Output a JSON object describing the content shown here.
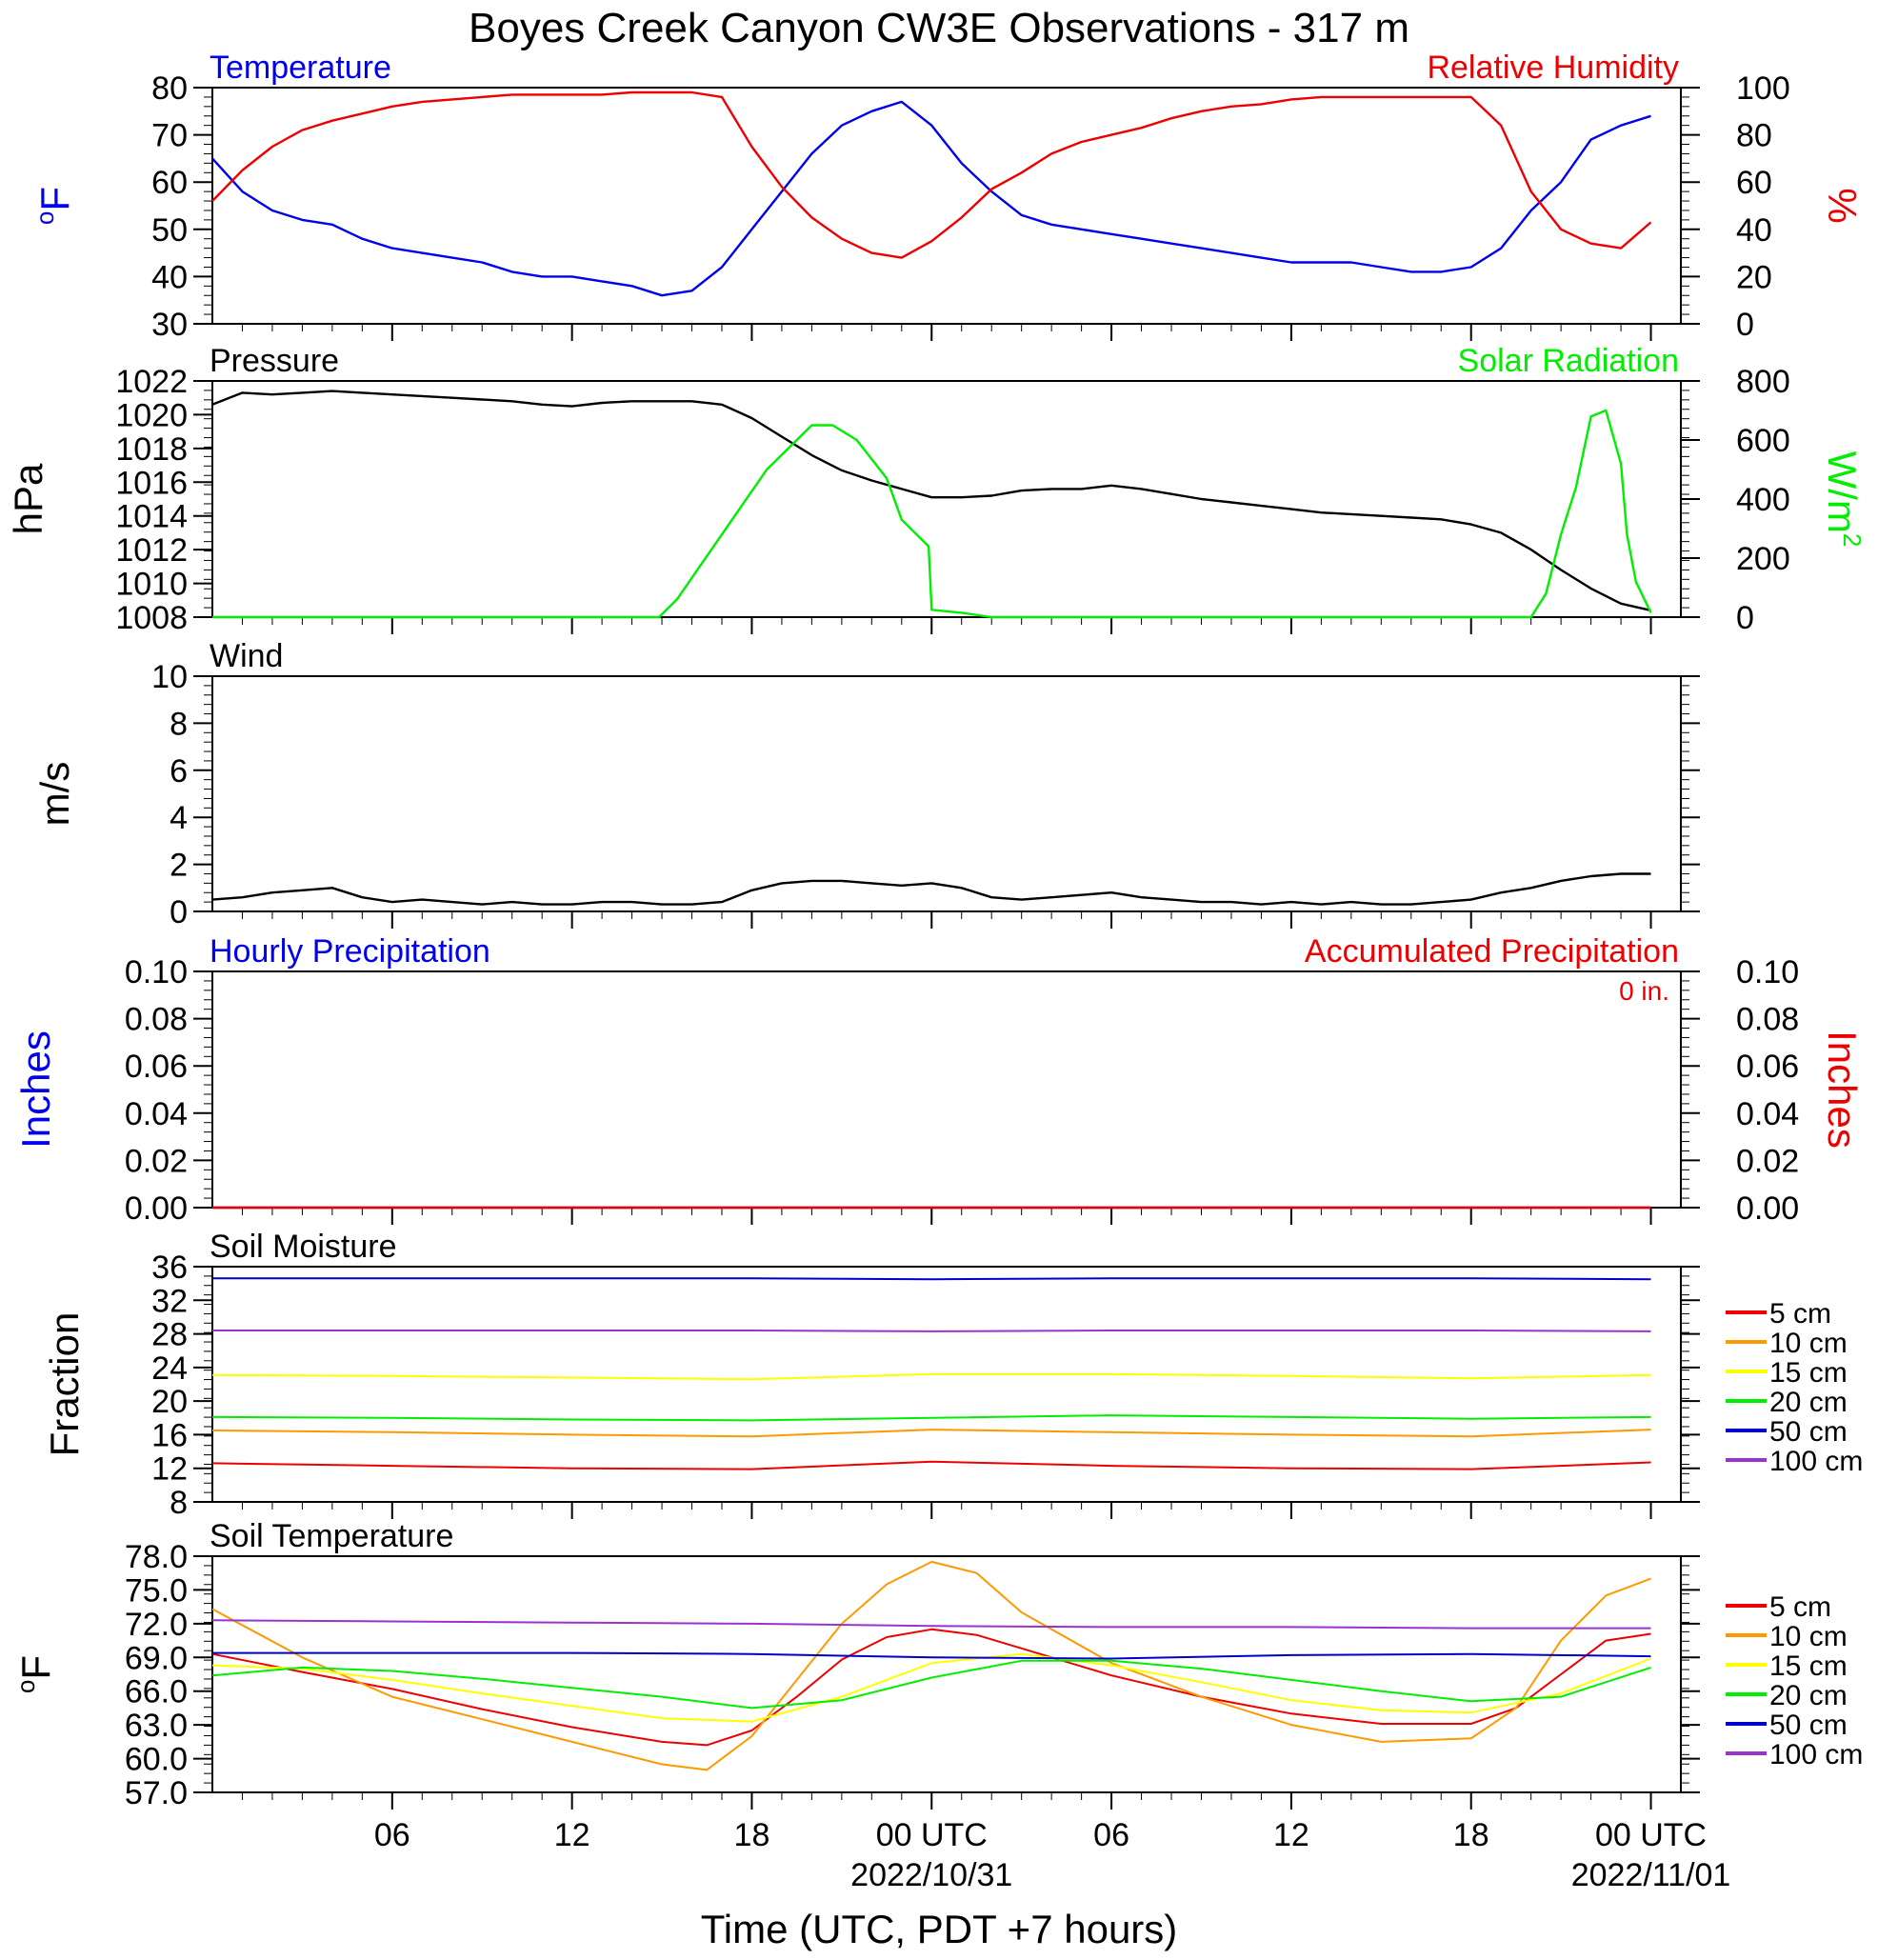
{
  "title": "Boyes Creek Canyon CW3E Observations - 317 m",
  "xlabel": "Time (UTC, PDT +7 hours)",
  "time_axis": {
    "ticks": [
      {
        "hour": 6,
        "label": "06",
        "date": ""
      },
      {
        "hour": 12,
        "label": "12",
        "date": ""
      },
      {
        "hour": 18,
        "label": "18",
        "date": ""
      },
      {
        "hour": 24,
        "label": "00 UTC",
        "date": "2022/10/31"
      },
      {
        "hour": 30,
        "label": "06",
        "date": ""
      },
      {
        "hour": 36,
        "label": "12",
        "date": ""
      },
      {
        "hour": 42,
        "label": "18",
        "date": ""
      },
      {
        "hour": 48,
        "label": "00 UTC",
        "date": "2022/11/01"
      }
    ]
  },
  "colors": {
    "blue": "#0000ee",
    "red": "#ee0000",
    "green": "#00ee00",
    "black": "#000000",
    "depths": [
      "#ee0000",
      "#ff9900",
      "#ffff00",
      "#00ee00",
      "#0000cc",
      "#9933cc"
    ]
  },
  "depth_labels": [
    "5 cm",
    "10 cm",
    "15 cm",
    "20 cm",
    "50 cm",
    "100 cm"
  ],
  "chart_data": [
    {
      "type": "line",
      "panel": "temperature_humidity",
      "left_title": "Temperature",
      "right_title": "Relative Humidity",
      "ylabel_left": "oF",
      "ylabel_right": "%",
      "ylim_left": [
        30,
        80
      ],
      "ylim_right": [
        0,
        100
      ],
      "yticks_left": [
        "30",
        "40",
        "50",
        "60",
        "70",
        "80"
      ],
      "yticks_right": [
        "0",
        "20",
        "40",
        "60",
        "80",
        "100"
      ],
      "series": [
        {
          "axis": "left",
          "color": "#0000ee",
          "x": [
            0,
            1,
            2,
            3,
            4,
            5,
            6,
            7,
            8,
            9,
            10,
            11,
            12,
            13,
            14,
            15,
            16,
            17,
            18,
            19,
            20,
            21,
            22,
            23,
            24,
            25,
            26,
            27,
            28,
            29,
            30,
            31,
            32,
            33,
            34,
            35,
            36,
            37,
            38,
            39,
            40,
            41,
            42,
            43,
            44,
            45,
            46,
            47,
            48
          ],
          "y": [
            65,
            58,
            54,
            52,
            51,
            48,
            46,
            45,
            44,
            43,
            41,
            40,
            40,
            39,
            38,
            36,
            37,
            42,
            50,
            58,
            66,
            72,
            75,
            77,
            72,
            64,
            58,
            53,
            51,
            50,
            49,
            48,
            47,
            46,
            45,
            44,
            43,
            43,
            43,
            42,
            41,
            41,
            42,
            46,
            54,
            60,
            69,
            72,
            74
          ]
        },
        {
          "axis": "right",
          "color": "#ee0000",
          "x": [
            0,
            1,
            2,
            3,
            4,
            5,
            6,
            7,
            8,
            9,
            10,
            11,
            12,
            13,
            14,
            15,
            16,
            17,
            18,
            19,
            20,
            21,
            22,
            23,
            24,
            25,
            26,
            27,
            28,
            29,
            30,
            31,
            32,
            33,
            34,
            35,
            36,
            37,
            38,
            39,
            40,
            41,
            42,
            43,
            44,
            45,
            46,
            47,
            48
          ],
          "y": [
            52,
            65,
            75,
            82,
            86,
            89,
            92,
            94,
            95,
            96,
            97,
            97,
            97,
            97,
            98,
            98,
            98,
            96,
            75,
            58,
            45,
            36,
            30,
            28,
            35,
            45,
            57,
            64,
            72,
            77,
            80,
            83,
            87,
            90,
            92,
            93,
            95,
            96,
            96,
            96,
            96,
            96,
            96,
            84,
            56,
            40,
            34,
            32,
            43
          ]
        }
      ]
    },
    {
      "type": "line",
      "panel": "pressure_solar",
      "left_title": "Pressure",
      "right_title": "Solar Radiation",
      "ylabel_left": "hPa",
      "ylabel_right": "W/m2",
      "ylim_left": [
        1008,
        1022
      ],
      "ylim_right": [
        0,
        800
      ],
      "yticks_left": [
        "1008",
        "1010",
        "1012",
        "1014",
        "1016",
        "1018",
        "1020",
        "1022"
      ],
      "yticks_right": [
        "0",
        "200",
        "400",
        "600",
        "800"
      ],
      "series": [
        {
          "axis": "left",
          "color": "#000000",
          "x": [
            0,
            1,
            2,
            3,
            4,
            5,
            6,
            7,
            8,
            9,
            10,
            11,
            12,
            13,
            14,
            15,
            16,
            17,
            18,
            19,
            20,
            21,
            22,
            23,
            24,
            25,
            26,
            27,
            28,
            29,
            30,
            31,
            32,
            33,
            34,
            35,
            36,
            37,
            38,
            39,
            40,
            41,
            42,
            43,
            44,
            45,
            46,
            47,
            48
          ],
          "y": [
            1020.6,
            1021.3,
            1021.2,
            1021.3,
            1021.4,
            1021.3,
            1021.2,
            1021.1,
            1021.0,
            1020.9,
            1020.8,
            1020.6,
            1020.5,
            1020.7,
            1020.8,
            1020.8,
            1020.8,
            1020.6,
            1019.8,
            1018.7,
            1017.6,
            1016.7,
            1016.1,
            1015.6,
            1015.1,
            1015.1,
            1015.2,
            1015.5,
            1015.6,
            1015.6,
            1015.8,
            1015.6,
            1015.3,
            1015.0,
            1014.8,
            1014.6,
            1014.4,
            1014.2,
            1014.1,
            1014.0,
            1013.9,
            1013.8,
            1013.5,
            1013.0,
            1012.0,
            1010.8,
            1009.7,
            1008.8,
            1008.4
          ]
        },
        {
          "axis": "right",
          "color": "#00ee00",
          "x": [
            0,
            0.15,
            14.6,
            14.9,
            15.5,
            17,
            18.5,
            19.5,
            20,
            20.7,
            21.5,
            22.5,
            23,
            23.9,
            24,
            25,
            26,
            44,
            44.5,
            45,
            45.5,
            46,
            46.5,
            47,
            47.2,
            47.5,
            48
          ],
          "y": [
            0,
            0,
            0,
            0,
            60,
            280,
            500,
            600,
            650,
            650,
            600,
            470,
            330,
            240,
            25,
            15,
            0,
            0,
            80,
            280,
            440,
            680,
            700,
            520,
            280,
            120,
            15
          ]
        }
      ]
    },
    {
      "type": "line",
      "panel": "wind",
      "left_title": "Wind",
      "ylabel_left": "m/s",
      "ylim_left": [
        0,
        10
      ],
      "yticks_left": [
        "0",
        "2",
        "4",
        "6",
        "8",
        "10"
      ],
      "series": [
        {
          "axis": "left",
          "color": "#000000",
          "x": [
            0,
            1,
            2,
            3,
            4,
            5,
            6,
            7,
            8,
            9,
            10,
            11,
            12,
            13,
            14,
            15,
            16,
            17,
            18,
            19,
            20,
            21,
            22,
            23,
            24,
            25,
            26,
            27,
            28,
            29,
            30,
            31,
            32,
            33,
            34,
            35,
            36,
            37,
            38,
            39,
            40,
            41,
            42,
            43,
            44,
            45,
            46,
            47,
            48
          ],
          "y": [
            0.5,
            0.6,
            0.8,
            0.9,
            1.0,
            0.6,
            0.4,
            0.5,
            0.4,
            0.3,
            0.4,
            0.3,
            0.3,
            0.4,
            0.4,
            0.3,
            0.3,
            0.4,
            0.9,
            1.2,
            1.3,
            1.3,
            1.2,
            1.1,
            1.2,
            1.0,
            0.6,
            0.5,
            0.6,
            0.7,
            0.8,
            0.6,
            0.5,
            0.4,
            0.4,
            0.3,
            0.4,
            0.3,
            0.4,
            0.3,
            0.3,
            0.4,
            0.5,
            0.8,
            1.0,
            1.3,
            1.5,
            1.6,
            1.6
          ]
        }
      ]
    },
    {
      "type": "line",
      "panel": "precipitation",
      "left_title": "Hourly Precipitation",
      "right_title": "Accumulated Precipitation",
      "total_label": "0 in.",
      "ylabel_left": "Inches",
      "ylabel_right": "Inches",
      "ylim_left": [
        0,
        0.1
      ],
      "ylim_right": [
        0,
        0.1
      ],
      "yticks_left": [
        "0.00",
        "0.02",
        "0.04",
        "0.06",
        "0.08",
        "0.10"
      ],
      "yticks_right": [
        "0.00",
        "0.02",
        "0.04",
        "0.06",
        "0.08",
        "0.10"
      ],
      "series": [
        {
          "axis": "left",
          "color": "#0000ee",
          "x": [
            0,
            48
          ],
          "y": [
            0,
            0
          ]
        },
        {
          "axis": "right",
          "color": "#ee0000",
          "x": [
            0,
            48
          ],
          "y": [
            0,
            0
          ]
        }
      ]
    },
    {
      "type": "line",
      "panel": "soil_moisture",
      "left_title": "Soil Moisture",
      "ylabel_left": "Fraction",
      "ylim_left": [
        8,
        36
      ],
      "yticks_left": [
        "8",
        "12",
        "16",
        "20",
        "24",
        "28",
        "32",
        "36"
      ],
      "series": [
        {
          "name": "5 cm",
          "color": "#ee0000",
          "x": [
            0,
            6,
            12,
            18,
            24,
            30,
            36,
            42,
            48
          ],
          "y": [
            12.6,
            12.3,
            12.0,
            11.9,
            12.8,
            12.3,
            12.0,
            11.9,
            12.7
          ]
        },
        {
          "name": "10 cm",
          "color": "#ff9900",
          "x": [
            0,
            6,
            12,
            18,
            24,
            30,
            36,
            42,
            48
          ],
          "y": [
            16.5,
            16.3,
            16.0,
            15.8,
            16.6,
            16.3,
            16.0,
            15.8,
            16.6
          ]
        },
        {
          "name": "15 cm",
          "color": "#ffff00",
          "x": [
            0,
            6,
            12,
            18,
            24,
            30,
            36,
            42,
            48
          ],
          "y": [
            23.1,
            23.0,
            22.8,
            22.6,
            23.2,
            23.2,
            23.0,
            22.7,
            23.1
          ]
        },
        {
          "name": "20 cm",
          "color": "#00ee00",
          "x": [
            0,
            6,
            12,
            18,
            24,
            30,
            36,
            42,
            48
          ],
          "y": [
            18.1,
            18.0,
            17.8,
            17.7,
            18.0,
            18.3,
            18.1,
            17.9,
            18.1
          ]
        },
        {
          "name": "50 cm",
          "color": "#0000cc",
          "x": [
            0,
            6,
            12,
            18,
            24,
            30,
            36,
            42,
            48
          ],
          "y": [
            34.6,
            34.6,
            34.6,
            34.6,
            34.5,
            34.6,
            34.6,
            34.6,
            34.5
          ]
        },
        {
          "name": "100 cm",
          "color": "#9933cc",
          "x": [
            0,
            6,
            12,
            18,
            24,
            30,
            36,
            42,
            48
          ],
          "y": [
            28.4,
            28.4,
            28.4,
            28.4,
            28.3,
            28.4,
            28.4,
            28.4,
            28.3
          ]
        }
      ]
    },
    {
      "type": "line",
      "panel": "soil_temperature",
      "left_title": "Soil Temperature",
      "ylabel_left": "oF",
      "ylim_left": [
        57,
        78
      ],
      "yticks_left": [
        "57.0",
        "60.0",
        "63.0",
        "66.0",
        "69.0",
        "72.0",
        "75.0",
        "78.0"
      ],
      "series": [
        {
          "name": "5 cm",
          "color": "#ee0000",
          "x": [
            0,
            3,
            6,
            9,
            12,
            15,
            16.5,
            18,
            19.5,
            21,
            22.5,
            24,
            25.5,
            27,
            30,
            33,
            36,
            39,
            42,
            43.5,
            45,
            46.5,
            48
          ],
          "y": [
            69.3,
            67.7,
            66.2,
            64.4,
            62.8,
            61.5,
            61.2,
            62.5,
            65.5,
            68.8,
            70.8,
            71.5,
            71.0,
            69.8,
            67.4,
            65.5,
            64.0,
            63.1,
            63.1,
            64.5,
            67.5,
            70.5,
            71.1
          ]
        },
        {
          "name": "10 cm",
          "color": "#ff9900",
          "x": [
            0,
            3,
            6,
            9,
            12,
            15,
            16.5,
            18,
            19.5,
            21,
            22.5,
            24,
            25.5,
            27,
            30,
            33,
            36,
            39,
            42,
            43.5,
            45,
            46.5,
            48
          ],
          "y": [
            73.3,
            69.0,
            65.5,
            63.5,
            61.5,
            59.5,
            59.0,
            62.0,
            67.0,
            72.0,
            75.5,
            77.5,
            76.5,
            73.0,
            68.5,
            65.5,
            63.0,
            61.5,
            61.8,
            64.5,
            70.5,
            74.5,
            76.0
          ]
        },
        {
          "name": "15 cm",
          "color": "#ffff00",
          "x": [
            0,
            3,
            6,
            9,
            12,
            15,
            18,
            21,
            24,
            27,
            30,
            33,
            36,
            39,
            42,
            45,
            48
          ],
          "y": [
            68.3,
            68.0,
            67.0,
            65.8,
            64.7,
            63.6,
            63.3,
            65.5,
            68.5,
            69.3,
            68.3,
            66.8,
            65.2,
            64.3,
            64.1,
            65.8,
            68.9
          ]
        },
        {
          "name": "20 cm",
          "color": "#00ee00",
          "x": [
            0,
            3,
            6,
            9,
            12,
            15,
            18,
            21,
            24,
            27,
            30,
            33,
            36,
            39,
            42,
            45,
            48
          ],
          "y": [
            67.4,
            68.1,
            67.8,
            67.1,
            66.3,
            65.5,
            64.5,
            65.2,
            67.2,
            68.7,
            68.7,
            68.0,
            67.0,
            66.0,
            65.1,
            65.5,
            68.1
          ]
        },
        {
          "name": "50 cm",
          "color": "#0000cc",
          "x": [
            0,
            6,
            12,
            18,
            24,
            30,
            36,
            42,
            48
          ],
          "y": [
            69.4,
            69.4,
            69.4,
            69.3,
            69.0,
            68.9,
            69.2,
            69.3,
            69.1
          ]
        },
        {
          "name": "100 cm",
          "color": "#9933cc",
          "x": [
            0,
            6,
            12,
            18,
            24,
            30,
            36,
            42,
            48
          ],
          "y": [
            72.3,
            72.2,
            72.1,
            72.0,
            71.8,
            71.7,
            71.7,
            71.6,
            71.6
          ]
        }
      ]
    }
  ]
}
